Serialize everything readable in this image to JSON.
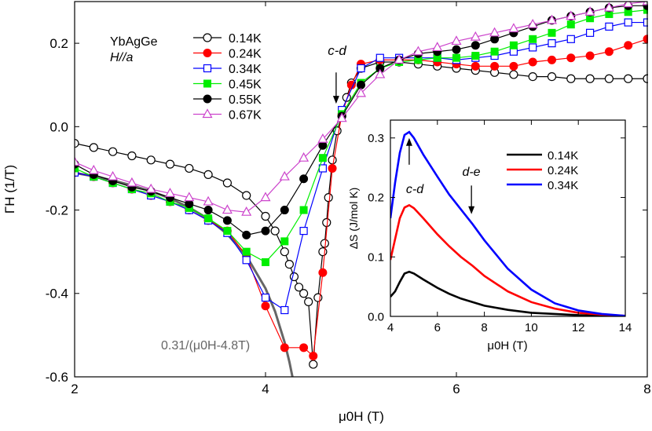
{
  "chart_data": [
    {
      "type": "line",
      "title": "",
      "xlabel": "μ0H (T)",
      "ylabel": "ΓH (1/T)",
      "xlim": [
        2,
        8
      ],
      "ylim": [
        -0.6,
        0.3
      ],
      "xticks": [
        "2",
        "4",
        "6",
        "8"
      ],
      "yticks": [
        "-0.6",
        "-0.4",
        "-0.2",
        "0.0",
        "0.2"
      ],
      "legend_placement": "top-left",
      "sample_label": "YbAgGe",
      "field_label": "H//a",
      "annotations": [
        "c-d",
        "0.31/(μ0H-4.8T)"
      ],
      "series": [
        {
          "name": "0.14K",
          "color": "#000000",
          "marker": "circle-open",
          "x": [
            2.0,
            2.2,
            2.4,
            2.6,
            2.8,
            3.0,
            3.2,
            3.4,
            3.6,
            3.8,
            4.0,
            4.1,
            4.2,
            4.25,
            4.3,
            4.35,
            4.4,
            4.45,
            4.5,
            4.55,
            4.6,
            4.62,
            4.64,
            4.66,
            4.7,
            4.75,
            4.8,
            4.85,
            4.9,
            5.0,
            5.2,
            5.4,
            5.6,
            5.8,
            6.0,
            6.2,
            6.4,
            6.6,
            6.8,
            7.0,
            7.2,
            7.4,
            7.6,
            7.8,
            8.0
          ],
          "y": [
            -0.04,
            -0.05,
            -0.06,
            -0.07,
            -0.08,
            -0.09,
            -0.1,
            -0.115,
            -0.135,
            -0.165,
            -0.215,
            -0.25,
            -0.3,
            -0.33,
            -0.36,
            -0.385,
            -0.4,
            -0.42,
            -0.57,
            -0.41,
            -0.3,
            -0.28,
            -0.23,
            -0.17,
            -0.08,
            -0.01,
            0.025,
            0.07,
            0.105,
            0.14,
            0.155,
            0.155,
            0.15,
            0.145,
            0.14,
            0.135,
            0.13,
            0.125,
            0.12,
            0.12,
            0.115,
            0.115,
            0.115,
            0.115,
            0.115
          ]
        },
        {
          "name": "0.24K",
          "color": "#ff0000",
          "marker": "circle-filled",
          "x": [
            2.0,
            2.2,
            2.4,
            2.6,
            2.8,
            3.0,
            3.2,
            3.4,
            3.6,
            3.8,
            4.0,
            4.2,
            4.4,
            4.5,
            4.6,
            4.7,
            4.8,
            4.9,
            5.0,
            5.2,
            5.4,
            5.6,
            5.8,
            6.0,
            6.2,
            6.4,
            6.6,
            6.8,
            7.0,
            7.2,
            7.4,
            7.6,
            7.8,
            8.0
          ],
          "y": [
            -0.11,
            -0.12,
            -0.135,
            -0.15,
            -0.165,
            -0.18,
            -0.2,
            -0.225,
            -0.25,
            -0.31,
            -0.43,
            -0.53,
            -0.53,
            -0.55,
            -0.35,
            -0.1,
            0.03,
            0.1,
            0.15,
            0.16,
            0.16,
            0.16,
            0.155,
            0.15,
            0.145,
            0.145,
            0.145,
            0.155,
            0.16,
            0.165,
            0.17,
            0.18,
            0.195,
            0.21
          ]
        },
        {
          "name": "0.34K",
          "color": "#0000ff",
          "marker": "square-open",
          "x": [
            2.0,
            2.2,
            2.4,
            2.6,
            2.8,
            3.0,
            3.2,
            3.4,
            3.6,
            3.8,
            4.0,
            4.2,
            4.4,
            4.6,
            4.8,
            5.0,
            5.2,
            5.4,
            5.6,
            5.8,
            6.0,
            6.2,
            6.4,
            6.6,
            6.8,
            7.0,
            7.2,
            7.4,
            7.6,
            7.8,
            8.0
          ],
          "y": [
            -0.11,
            -0.12,
            -0.135,
            -0.15,
            -0.165,
            -0.18,
            -0.2,
            -0.225,
            -0.255,
            -0.32,
            -0.41,
            -0.44,
            -0.25,
            -0.1,
            0.04,
            0.14,
            0.165,
            0.165,
            0.165,
            0.165,
            0.16,
            0.165,
            0.17,
            0.18,
            0.19,
            0.2,
            0.21,
            0.225,
            0.24,
            0.25,
            0.25
          ]
        },
        {
          "name": "0.45K",
          "color": "#00ee00",
          "marker": "square-filled",
          "x": [
            2.0,
            2.2,
            2.4,
            2.6,
            2.8,
            3.0,
            3.2,
            3.4,
            3.6,
            3.8,
            4.0,
            4.2,
            4.4,
            4.6,
            4.8,
            5.0,
            5.2,
            5.4,
            5.6,
            5.8,
            6.0,
            6.2,
            6.4,
            6.6,
            6.8,
            7.0,
            7.2,
            7.4,
            7.6,
            7.8,
            8.0
          ],
          "y": [
            -0.1,
            -0.12,
            -0.135,
            -0.15,
            -0.16,
            -0.18,
            -0.195,
            -0.22,
            -0.25,
            -0.3,
            -0.325,
            -0.275,
            -0.2,
            -0.075,
            0.03,
            0.105,
            0.14,
            0.155,
            0.16,
            0.165,
            0.165,
            0.17,
            0.18,
            0.195,
            0.21,
            0.225,
            0.245,
            0.26,
            0.27,
            0.275,
            0.28
          ]
        },
        {
          "name": "0.55K",
          "color": "#000000",
          "marker": "circle-filled",
          "x": [
            2.0,
            2.2,
            2.4,
            2.6,
            2.8,
            3.0,
            3.2,
            3.4,
            3.6,
            3.8,
            4.0,
            4.2,
            4.4,
            4.6,
            4.8,
            5.0,
            5.2,
            5.4,
            5.6,
            5.8,
            6.0,
            6.2,
            6.4,
            6.6,
            6.8,
            7.0,
            7.2,
            7.4,
            7.6,
            7.8,
            8.0
          ],
          "y": [
            -0.09,
            -0.115,
            -0.13,
            -0.145,
            -0.155,
            -0.17,
            -0.185,
            -0.2,
            -0.225,
            -0.26,
            -0.25,
            -0.2,
            -0.125,
            -0.045,
            0.025,
            0.1,
            0.14,
            0.16,
            0.175,
            0.18,
            0.185,
            0.195,
            0.21,
            0.225,
            0.24,
            0.255,
            0.265,
            0.275,
            0.285,
            0.29,
            0.29
          ]
        },
        {
          "name": "0.67K",
          "color": "#cc44cc",
          "marker": "triangle-open",
          "x": [
            2.0,
            2.2,
            2.4,
            2.6,
            2.8,
            3.0,
            3.2,
            3.4,
            3.6,
            3.8,
            4.0,
            4.2,
            4.4,
            4.6,
            4.8,
            5.0,
            5.2,
            5.4,
            5.6,
            5.8,
            6.0,
            6.2,
            6.4,
            6.6,
            6.8,
            7.0,
            7.2,
            7.4,
            7.6,
            7.8,
            8.0
          ],
          "y": [
            -0.085,
            -0.105,
            -0.12,
            -0.135,
            -0.15,
            -0.16,
            -0.17,
            -0.18,
            -0.2,
            -0.205,
            -0.17,
            -0.12,
            -0.075,
            -0.03,
            0.02,
            0.08,
            0.125,
            0.16,
            0.18,
            0.19,
            0.205,
            0.215,
            0.225,
            0.235,
            0.245,
            0.255,
            0.265,
            0.275,
            0.285,
            0.295,
            0.3
          ]
        },
        {
          "name": "0.31/(μ0H-4.8T)",
          "color": "#666666",
          "marker": "none",
          "linewidth": 3,
          "x": [
            2.0,
            2.2,
            2.4,
            2.6,
            2.8,
            3.0,
            3.2,
            3.4,
            3.6,
            3.8,
            4.0,
            4.1,
            4.2,
            4.25,
            4.3,
            4.34
          ],
          "y": [
            -0.111,
            -0.119,
            -0.129,
            -0.141,
            -0.155,
            -0.172,
            -0.194,
            -0.221,
            -0.258,
            -0.31,
            -0.388,
            -0.443,
            -0.517,
            -0.564,
            -0.62,
            -0.674
          ]
        }
      ],
      "annotation_arrows": [
        {
          "label": "c-d",
          "x": 4.74,
          "y_from": 0.13,
          "y_to": 0.055
        }
      ]
    },
    {
      "type": "line",
      "title": "",
      "xlabel": "μ0H (T)",
      "ylabel": "ΔS (J/mol K)",
      "xlim": [
        4,
        14
      ],
      "ylim": [
        0,
        0.33
      ],
      "xticks": [
        "4",
        "6",
        "8",
        "10",
        "12",
        "14"
      ],
      "yticks": [
        "0.0",
        "0.1",
        "0.2",
        "0.3"
      ],
      "legend_placement": "top-right",
      "annotations": [
        "c-d",
        "d-e"
      ],
      "series": [
        {
          "name": "0.14K",
          "color": "#000000",
          "x": [
            4.0,
            4.2,
            4.4,
            4.6,
            4.8,
            5.0,
            5.4,
            6.0,
            6.5,
            7.0,
            8.0,
            9.0,
            10.0,
            11.0,
            12.0,
            13.0,
            14.0
          ],
          "y": [
            0.033,
            0.042,
            0.058,
            0.072,
            0.075,
            0.072,
            0.062,
            0.048,
            0.038,
            0.03,
            0.018,
            0.011,
            0.006,
            0.004,
            0.002,
            0.001,
            0.0005
          ]
        },
        {
          "name": "0.24K",
          "color": "#ff0000",
          "x": [
            4.0,
            4.2,
            4.4,
            4.6,
            4.8,
            5.0,
            5.4,
            6.0,
            6.5,
            7.0,
            7.5,
            8.0,
            9.0,
            10.0,
            11.0,
            12.0,
            13.0,
            14.0
          ],
          "y": [
            0.095,
            0.13,
            0.165,
            0.183,
            0.187,
            0.182,
            0.165,
            0.138,
            0.118,
            0.1,
            0.085,
            0.068,
            0.042,
            0.024,
            0.013,
            0.006,
            0.003,
            0.001
          ]
        },
        {
          "name": "0.34K",
          "color": "#0000ff",
          "x": [
            4.0,
            4.2,
            4.4,
            4.6,
            4.8,
            5.0,
            5.4,
            6.0,
            6.5,
            7.0,
            7.5,
            8.0,
            8.5,
            9.0,
            10.0,
            11.0,
            12.0,
            13.0,
            14.0
          ],
          "y": [
            0.165,
            0.225,
            0.275,
            0.305,
            0.31,
            0.3,
            0.272,
            0.235,
            0.205,
            0.18,
            0.155,
            0.128,
            0.104,
            0.08,
            0.045,
            0.022,
            0.01,
            0.004,
            0.001
          ]
        }
      ],
      "annotation_arrows": [
        {
          "label": "c-d",
          "x": 4.8,
          "y_from": 0.255,
          "y_to": 0.3
        },
        {
          "label": "d-e",
          "x": 7.45,
          "y_from": 0.22,
          "y_to": 0.172
        }
      ]
    }
  ]
}
